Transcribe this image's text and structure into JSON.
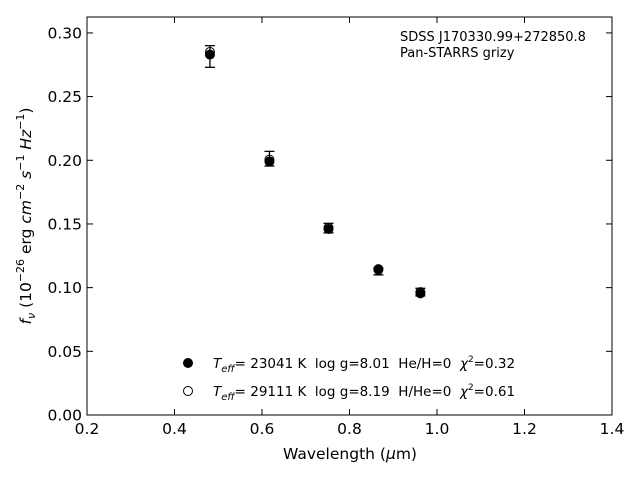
{
  "chart_data": {
    "type": "scatter",
    "xlabel_prefix": "Wavelength (",
    "xlabel_mu": "μ",
    "xlabel_suffix": "m)",
    "ylabel_f": "f",
    "ylabel_nu": "ν",
    "ylabel_rest1": " (10",
    "ylabel_exp1": "−26",
    "ylabel_rest2": " erg ",
    "ylabel_cm": "cm",
    "ylabel_exp2": "−2",
    "ylabel_s": " s",
    "ylabel_exp3": "−1",
    "ylabel_hz": " Hz",
    "ylabel_exp4": "−1",
    "ylabel_close": ")",
    "xlim": [
      0.2,
      1.4
    ],
    "ylim": [
      0.0,
      0.3125
    ],
    "xticks": [
      0.2,
      0.4,
      0.6,
      0.8,
      1.0,
      1.2,
      1.4
    ],
    "xtick_labels": [
      "0.2",
      "0.4",
      "0.6",
      "0.8",
      "1.0",
      "1.2",
      "1.4"
    ],
    "yticks": [
      0.0,
      0.05,
      0.1,
      0.15,
      0.2,
      0.25,
      0.3
    ],
    "ytick_labels": [
      "0.00",
      "0.05",
      "0.10",
      "0.15",
      "0.20",
      "0.25",
      "0.30"
    ],
    "grid": false,
    "annotation_lines": [
      "SDSS J170330.99+272850.8",
      "Pan-STARRS grizy"
    ],
    "observed": {
      "x": [
        0.481,
        0.617,
        0.752,
        0.866,
        0.962
      ],
      "y": [
        0.2815,
        0.2005,
        0.1455,
        0.1135,
        0.097
      ],
      "yerr_low": [
        0.0085,
        0.005,
        0.0025,
        0.0035,
        0.0035
      ],
      "yerr_high": [
        0.0085,
        0.0065,
        0.005,
        0.002,
        0.0025
      ]
    },
    "series": [
      {
        "marker": "filled",
        "color": "#000000",
        "x": [
          0.481,
          0.617,
          0.752,
          0.866,
          0.962
        ],
        "y": [
          0.283,
          0.199,
          0.146,
          0.114,
          0.0955
        ],
        "legend": {
          "teff_T": "T",
          "teff_sub": "eff",
          "text_main": "= 23041 K  log g=8.01  He/H=0  ",
          "chi": "χ",
          "chi_sup": "2",
          "chi_val": "=0.32"
        }
      },
      {
        "marker": "open",
        "color": "#000000",
        "x": [
          0.481,
          0.617,
          0.752,
          0.866,
          0.962
        ],
        "y": [
          0.285,
          0.2005,
          0.147,
          0.1145,
          0.0965
        ],
        "legend": {
          "teff_T": "T",
          "teff_sub": "eff",
          "text_main": "= 29111 K  log g=8.19  H/He=0  ",
          "chi": "χ",
          "chi_sup": "2",
          "chi_val": "=0.61"
        }
      }
    ],
    "legend_position": "lower-center"
  }
}
